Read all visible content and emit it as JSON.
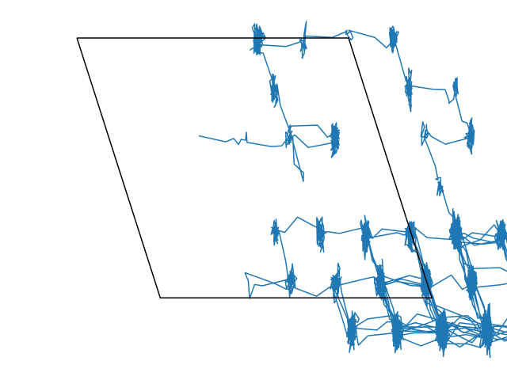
{
  "chart_data": {
    "type": "line",
    "title": "",
    "xlabel": "",
    "ylabel": "",
    "axes_visible": false,
    "grid": false,
    "legend": "none",
    "xlim": [
      -1.7,
      9.5
    ],
    "ylim": [
      -7.2,
      0.8
    ],
    "series": [
      {
        "role": "unit-cell-outline",
        "color": "#000000",
        "x": [
          0.0,
          6.0,
          7.84,
          1.84,
          0.0
        ],
        "y": [
          0.0,
          0.0,
          -5.47,
          -5.47,
          0.0
        ]
      },
      {
        "role": "trajectory",
        "color": "#1f77b4",
        "lattice_origin": [
          0.0,
          0.0
        ],
        "lattice_a": [
          1.0,
          0.0
        ],
        "lattice_b": [
          0.345,
          -1.03
        ],
        "lattice_i_range": [
          -1,
          8
        ],
        "lattice_j_range": [
          0,
          6
        ],
        "n_points": 7000,
        "rng_seed": 7
      }
    ]
  }
}
